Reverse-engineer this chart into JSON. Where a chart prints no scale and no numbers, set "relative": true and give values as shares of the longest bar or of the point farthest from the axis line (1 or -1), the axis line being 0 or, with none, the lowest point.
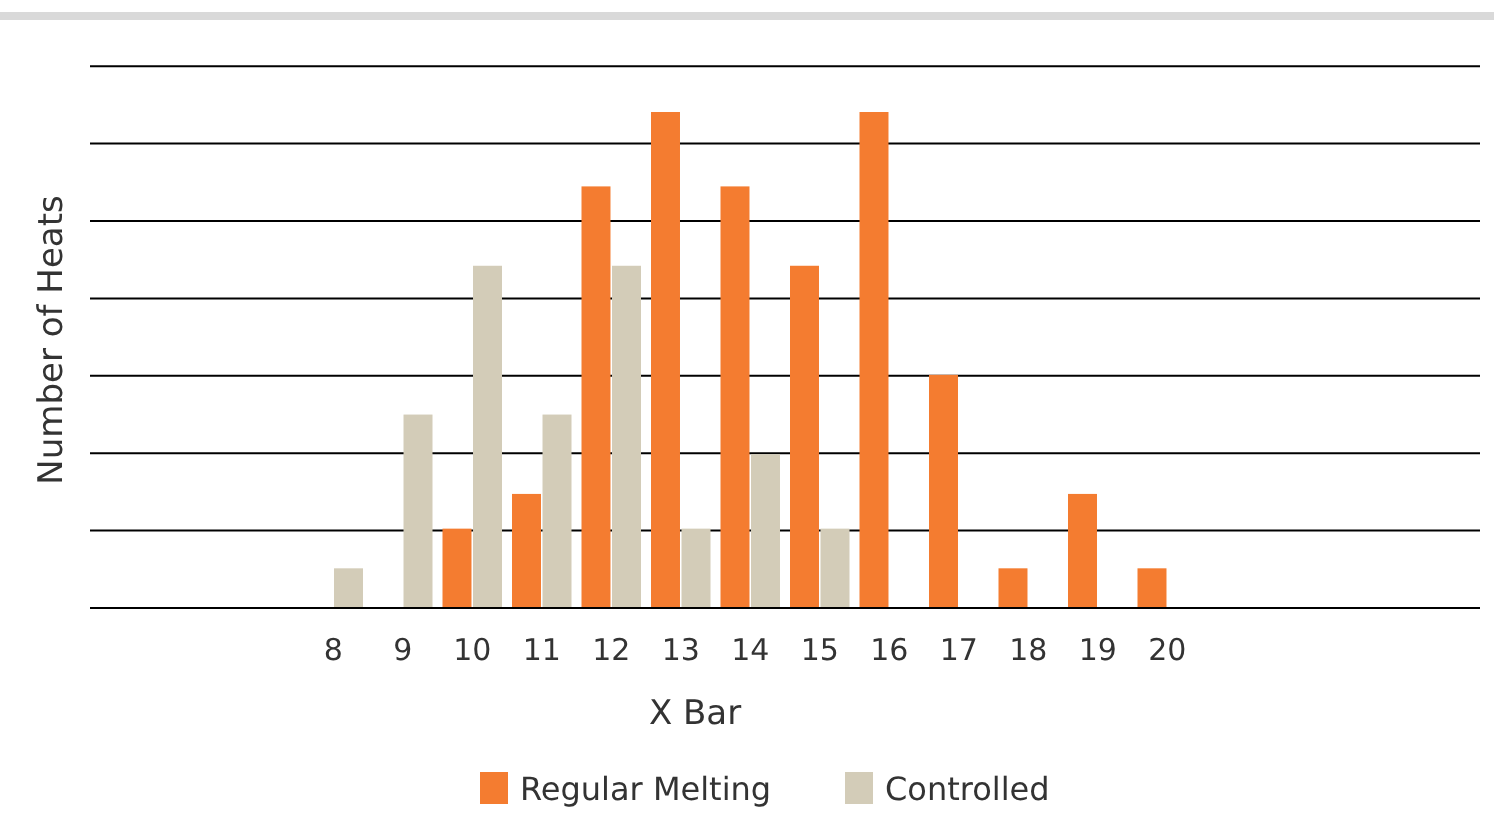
{
  "chart_data": {
    "type": "bar",
    "relative": true,
    "xlabel": "X Bar",
    "ylabel": "Number of Heats",
    "grid": "y",
    "legend": "bottom",
    "categories": [
      null,
      null,
      null,
      "8",
      "9",
      "10",
      "11",
      "12",
      "13",
      "14",
      "15",
      "16",
      "17",
      "18",
      "19",
      "20",
      null,
      null,
      null,
      null
    ],
    "series": [
      {
        "name": "Regular Melting",
        "color": "#f47c30",
        "values": [
          null,
          null,
          null,
          null,
          null,
          0.16,
          0.23,
          0.85,
          1,
          0.85,
          0.69,
          1,
          0.47,
          0.08,
          0.23,
          0.08,
          null,
          null,
          null,
          null
        ]
      },
      {
        "name": "Controlled",
        "color": "#d3ccb8",
        "values": [
          null,
          null,
          null,
          0.08,
          0.39,
          0.69,
          0.39,
          0.69,
          0.16,
          0.31,
          0.16,
          null,
          null,
          null,
          null,
          null,
          null,
          null,
          null,
          null
        ]
      }
    ]
  }
}
